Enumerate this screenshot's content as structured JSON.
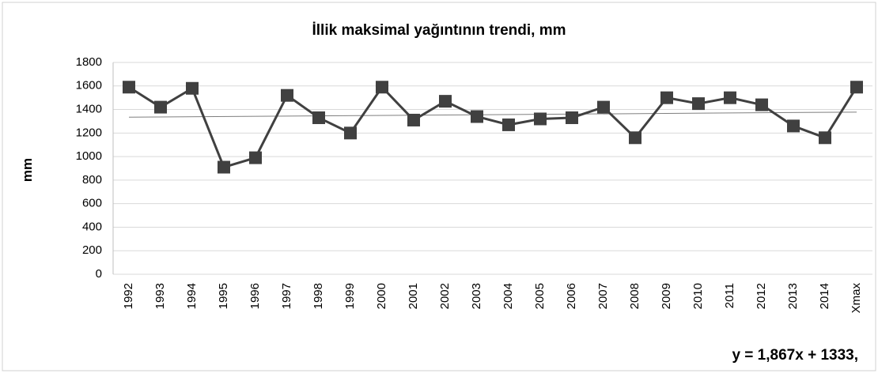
{
  "chart_data": {
    "type": "line",
    "title": "İllik maksimal yağıntının trendi, mm",
    "y_label": "mm",
    "annotation": "y = 1,867x + 1333,",
    "categories": [
      "1992",
      "1993",
      "1994",
      "1995",
      "1996",
      "1997",
      "1998",
      "1999",
      "2000",
      "2001",
      "2002",
      "2003",
      "2004",
      "2005",
      "2006",
      "2007",
      "2008",
      "2009",
      "2010",
      "2011",
      "2012",
      "2013",
      "2014",
      "Xmax"
    ],
    "series": [
      {
        "name": "Xmax",
        "color": "#404040",
        "values": [
          1590,
          1420,
          1580,
          910,
          990,
          1520,
          1330,
          1200,
          1590,
          1310,
          1470,
          1340,
          1270,
          1320,
          1330,
          1420,
          1160,
          1500,
          1450,
          1500,
          1440,
          1260,
          1160,
          1590
        ]
      }
    ],
    "trendline": {
      "color": "#7f7f7f",
      "values": [
        1335,
        1378
      ]
    },
    "ylim": [
      0,
      1800
    ],
    "yticks": [
      0,
      200,
      400,
      600,
      800,
      1000,
      1200,
      1400,
      1600,
      1800
    ],
    "grid": true
  }
}
